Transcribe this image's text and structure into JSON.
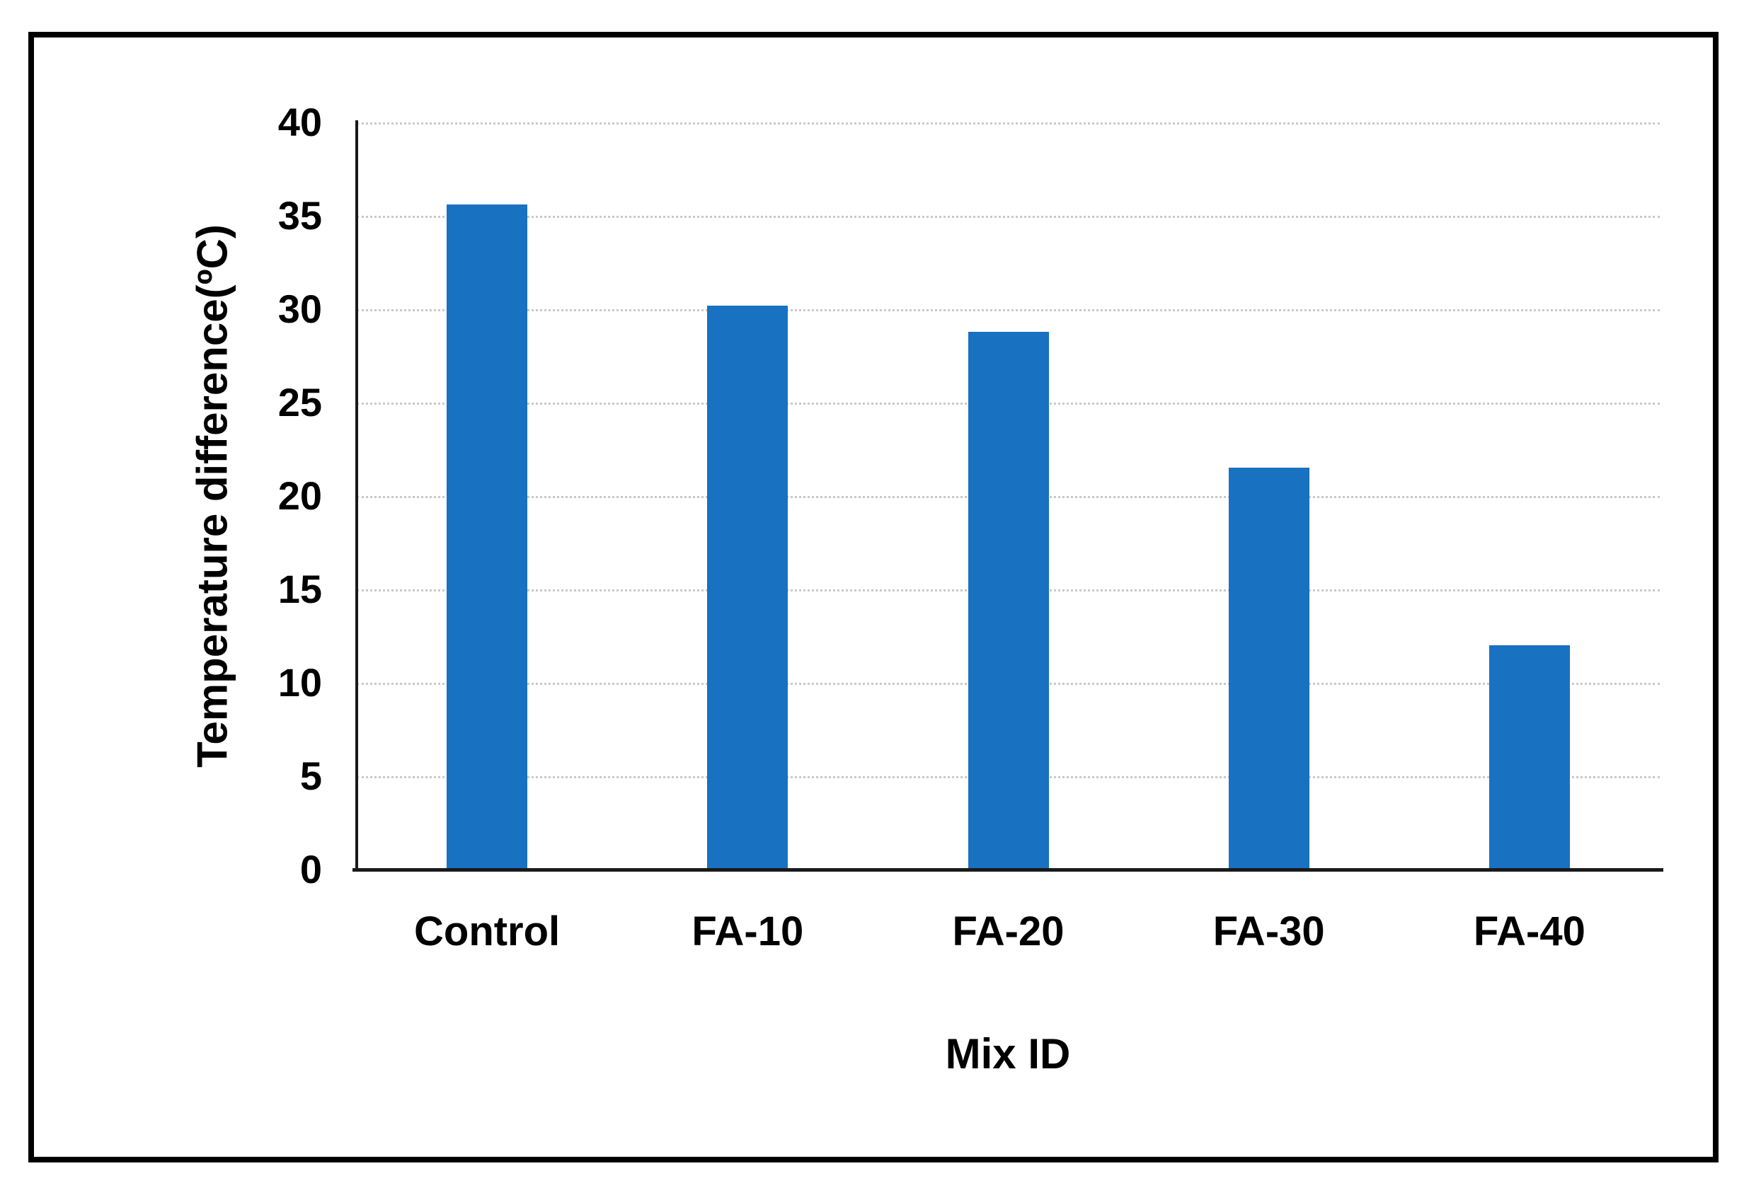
{
  "chart_data": {
    "type": "bar",
    "title": "",
    "categories": [
      "Control",
      "FA-10",
      "FA-20",
      "FA-30",
      "FA-40"
    ],
    "values": [
      35.6,
      30.2,
      28.8,
      21.5,
      12.0
    ],
    "xlabel": "Mix ID",
    "ylabel": "Temperature difference(ºC)",
    "ylim": [
      0,
      40
    ],
    "yticks": [
      0,
      5,
      10,
      15,
      20,
      25,
      30,
      35,
      40
    ],
    "ytick_labels": [
      "0",
      "5",
      "10",
      "15",
      "20",
      "25",
      "30",
      "35",
      "40"
    ],
    "grid": "horizontal-dotted",
    "legend": "none",
    "colors": {
      "bar": "#1971c2",
      "gridline": "#c9c9c9",
      "axis": "#1a1a1a",
      "text": "#000000",
      "frame_border": "#000000",
      "background": "#ffffff"
    }
  }
}
